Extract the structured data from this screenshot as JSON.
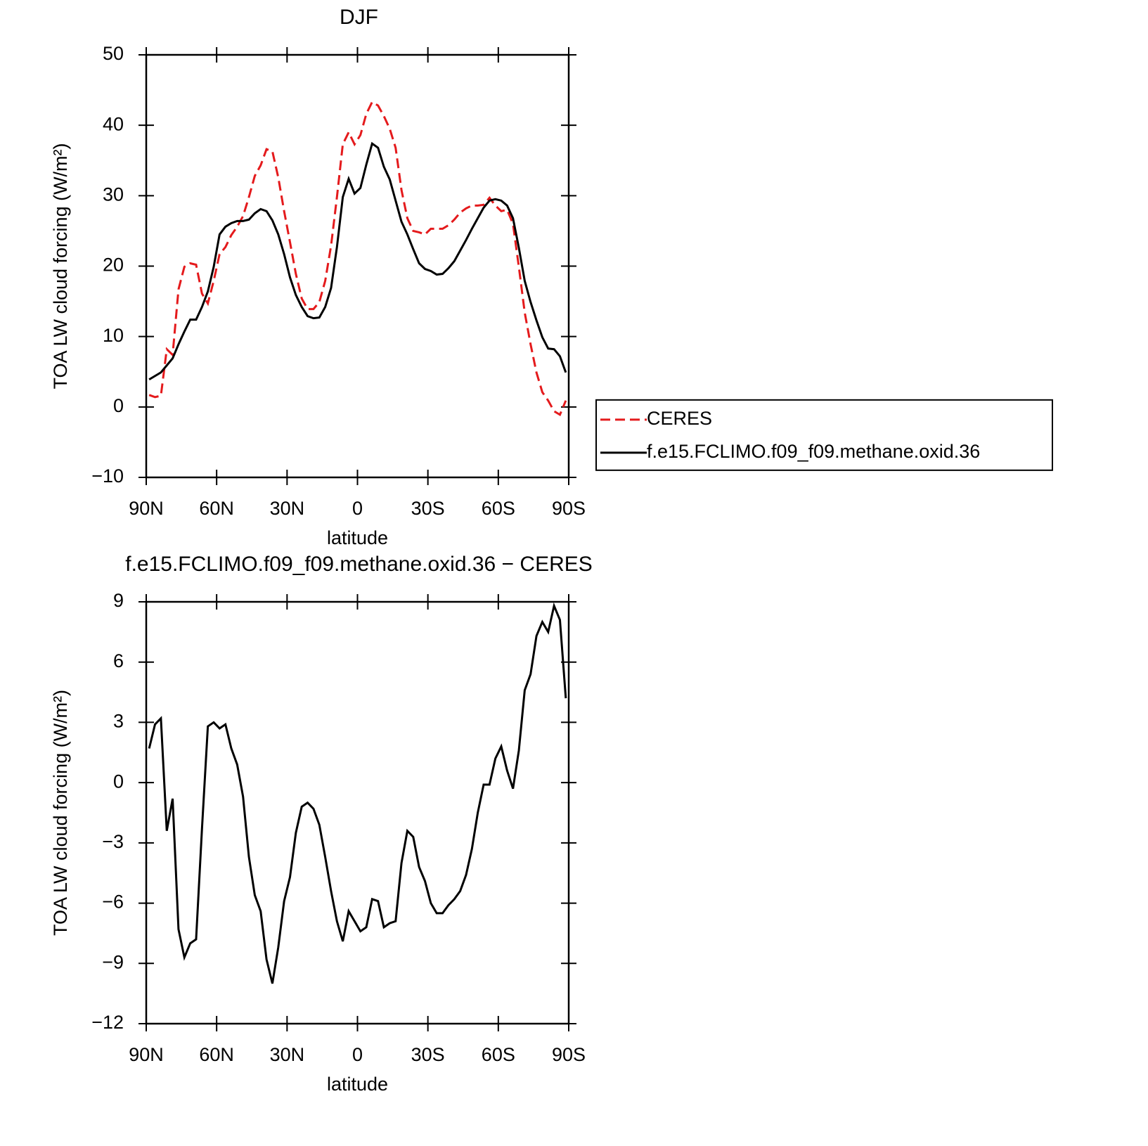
{
  "chart_data": [
    {
      "type": "line",
      "title": "DJF",
      "xlabel": "latitude",
      "ylabel": "TOA LW cloud forcing (W/m²)",
      "x": [
        88.75,
        86.25,
        83.75,
        81.25,
        78.75,
        76.25,
        73.75,
        71.25,
        68.75,
        66.25,
        63.75,
        61.25,
        58.75,
        56.25,
        53.75,
        51.25,
        48.75,
        46.25,
        43.75,
        41.25,
        38.75,
        36.25,
        33.75,
        31.25,
        28.75,
        26.25,
        23.75,
        21.25,
        18.75,
        16.25,
        13.75,
        11.25,
        8.75,
        6.25,
        3.75,
        1.25,
        -1.25,
        -3.75,
        -6.25,
        -8.75,
        -11.25,
        -13.75,
        -16.25,
        -18.75,
        -21.25,
        -23.75,
        -26.25,
        -28.75,
        -31.25,
        -33.75,
        -36.25,
        -38.75,
        -41.25,
        -43.75,
        -46.25,
        -48.75,
        -51.25,
        -53.75,
        -56.25,
        -58.75,
        -61.25,
        -63.75,
        -66.25,
        -68.75,
        -71.25,
        -73.75,
        -76.25,
        -78.75,
        -81.25,
        -83.75,
        -86.25,
        -88.75
      ],
      "xlim": [
        90,
        -90
      ],
      "xticks": [
        {
          "value": 90,
          "label": "90N"
        },
        {
          "value": 60,
          "label": "60N"
        },
        {
          "value": 30,
          "label": "30N"
        },
        0,
        {
          "value": -30,
          "label": "30S"
        },
        {
          "value": -60,
          "label": "60S"
        },
        {
          "value": -90,
          "label": "90S"
        }
      ],
      "ylim": [
        -10,
        50
      ],
      "yticks": [
        {
          "value": -10,
          "label": "−10"
        },
        0,
        10,
        20,
        30,
        40,
        50
      ],
      "legend": "right",
      "series": [
        {
          "name": "CERES",
          "color": "#e41a1c",
          "line_style": "dashed",
          "values": [
            1.7,
            1.4,
            1.6,
            8.2,
            7.4,
            16.7,
            19.9,
            20.4,
            20.2,
            16.1,
            14.7,
            17.9,
            21.7,
            22.7,
            24.4,
            25.6,
            27.1,
            29.8,
            32.8,
            34.3,
            36.6,
            36.3,
            32.6,
            27.8,
            23.4,
            18.9,
            15.4,
            13.9,
            13.9,
            14.9,
            17.9,
            22.9,
            29.8,
            37.3,
            39.0,
            37.3,
            38.6,
            41.6,
            43.3,
            42.8,
            41.3,
            39.5,
            36.8,
            30.8,
            26.8,
            25.0,
            24.8,
            24.5,
            25.3,
            25.3,
            25.3,
            25.8,
            26.6,
            27.6,
            28.2,
            28.6,
            28.6,
            28.7,
            29.7,
            28.6,
            27.8,
            28.0,
            26.0,
            19.9,
            13.4,
            8.9,
            4.9,
            2.1,
            0.9,
            -0.6,
            -1.1,
            0.9
          ]
        },
        {
          "name": "f.e15.FCLIMO.f09_f09.methane.oxid.36",
          "color": "#000000",
          "line_style": "solid",
          "values": [
            3.9,
            4.4,
            4.9,
            5.9,
            6.9,
            8.9,
            10.7,
            12.4,
            12.4,
            14.2,
            16.4,
            19.9,
            24.5,
            25.6,
            26.1,
            26.4,
            26.4,
            26.6,
            27.5,
            28.1,
            27.8,
            26.5,
            24.5,
            21.7,
            18.4,
            15.9,
            14.2,
            12.9,
            12.6,
            12.7,
            14.2,
            16.9,
            22.7,
            29.8,
            32.4,
            30.3,
            31.1,
            34.4,
            37.4,
            36.8,
            34.1,
            32.3,
            29.3,
            26.3,
            24.5,
            22.4,
            20.4,
            19.6,
            19.3,
            18.8,
            18.9,
            19.7,
            20.7,
            22.2,
            23.7,
            25.3,
            26.8,
            28.3,
            29.3,
            29.5,
            29.3,
            28.6,
            26.8,
            22.6,
            17.9,
            14.9,
            12.3,
            9.9,
            8.3,
            8.2,
            7.2,
            4.9
          ]
        }
      ]
    },
    {
      "type": "line",
      "title": "f.e15.FCLIMO.f09_f09.methane.oxid.36 − CERES",
      "xlabel": "latitude",
      "ylabel": "TOA LW cloud forcing (W/m²)",
      "x": [
        88.75,
        86.25,
        83.75,
        81.25,
        78.75,
        76.25,
        73.75,
        71.25,
        68.75,
        66.25,
        63.75,
        61.25,
        58.75,
        56.25,
        53.75,
        51.25,
        48.75,
        46.25,
        43.75,
        41.25,
        38.75,
        36.25,
        33.75,
        31.25,
        28.75,
        26.25,
        23.75,
        21.25,
        18.75,
        16.25,
        13.75,
        11.25,
        8.75,
        6.25,
        3.75,
        1.25,
        -1.25,
        -3.75,
        -6.25,
        -8.75,
        -11.25,
        -13.75,
        -16.25,
        -18.75,
        -21.25,
        -23.75,
        -26.25,
        -28.75,
        -31.25,
        -33.75,
        -36.25,
        -38.75,
        -41.25,
        -43.75,
        -46.25,
        -48.75,
        -51.25,
        -53.75,
        -56.25,
        -58.75,
        -61.25,
        -63.75,
        -66.25,
        -68.75,
        -71.25,
        -73.75,
        -76.25,
        -78.75,
        -81.25,
        -83.75,
        -86.25,
        -88.75
      ],
      "xlim": [
        90,
        -90
      ],
      "xticks": [
        {
          "value": 90,
          "label": "90N"
        },
        {
          "value": 60,
          "label": "60N"
        },
        {
          "value": 30,
          "label": "30N"
        },
        0,
        {
          "value": -30,
          "label": "30S"
        },
        {
          "value": -60,
          "label": "60S"
        },
        {
          "value": -90,
          "label": "90S"
        }
      ],
      "ylim": [
        -12,
        9
      ],
      "yticks": [
        {
          "value": -12,
          "label": "−12"
        },
        {
          "value": -9,
          "label": "−9"
        },
        {
          "value": -6,
          "label": "−6"
        },
        {
          "value": -3,
          "label": "−3"
        },
        0,
        3,
        6,
        9
      ],
      "series": [
        {
          "color": "#000000",
          "line_style": "solid",
          "values": [
            1.7,
            2.9,
            3.2,
            -2.4,
            -0.8,
            -7.3,
            -8.7,
            -8.0,
            -7.8,
            -2.3,
            2.8,
            3.0,
            2.7,
            2.9,
            1.7,
            0.9,
            -0.7,
            -3.7,
            -5.6,
            -6.4,
            -8.8,
            -10.0,
            -8.2,
            -5.9,
            -4.7,
            -2.5,
            -1.2,
            -1.0,
            -1.3,
            -2.1,
            -3.7,
            -5.4,
            -6.9,
            -7.9,
            -6.4,
            -6.9,
            -7.4,
            -7.2,
            -5.8,
            -5.9,
            -7.2,
            -7.0,
            -6.9,
            -4.0,
            -2.4,
            -2.7,
            -4.2,
            -4.9,
            -6.0,
            -6.5,
            -6.5,
            -6.1,
            -5.8,
            -5.4,
            -4.6,
            -3.3,
            -1.5,
            -0.1,
            -0.1,
            1.2,
            1.8,
            0.6,
            -0.3,
            1.6,
            4.6,
            5.4,
            7.3,
            8.0,
            7.5,
            8.8,
            8.1,
            4.2
          ]
        }
      ]
    }
  ]
}
